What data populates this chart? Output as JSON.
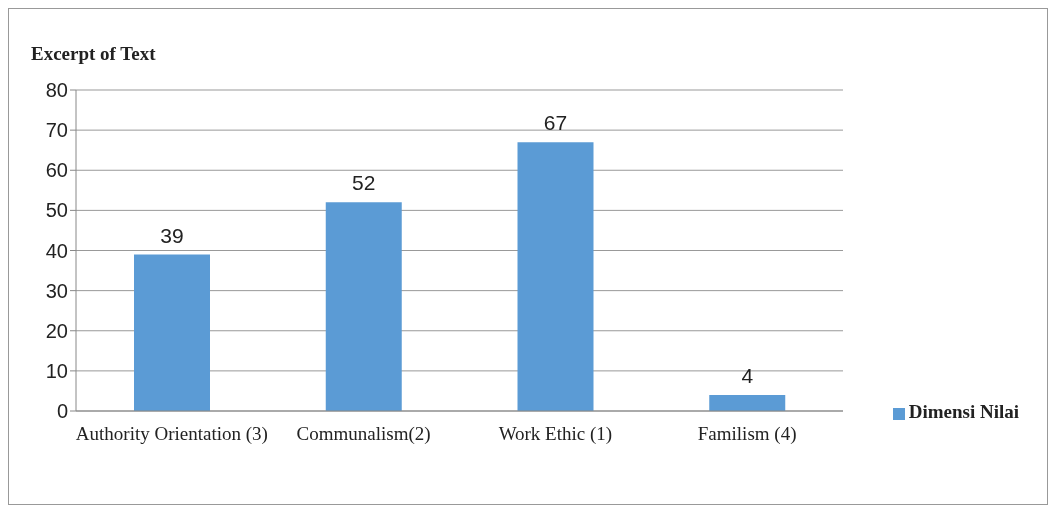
{
  "chart_data": {
    "type": "bar",
    "ylabel": "Excerpt of Text",
    "categories": [
      "Authority Orientation (3)",
      "Communalism(2)",
      "Work Ethic (1)",
      "Familism (4)"
    ],
    "series": [
      {
        "name": "Dimensi Nilai",
        "color": "#5b9bd5",
        "values": [
          39,
          52,
          67,
          4
        ]
      }
    ],
    "ylim": [
      0,
      80
    ],
    "yticks": [
      0,
      10,
      20,
      30,
      40,
      50,
      60,
      70,
      80
    ],
    "grid": "y",
    "legend": "right",
    "data_labels": true
  }
}
